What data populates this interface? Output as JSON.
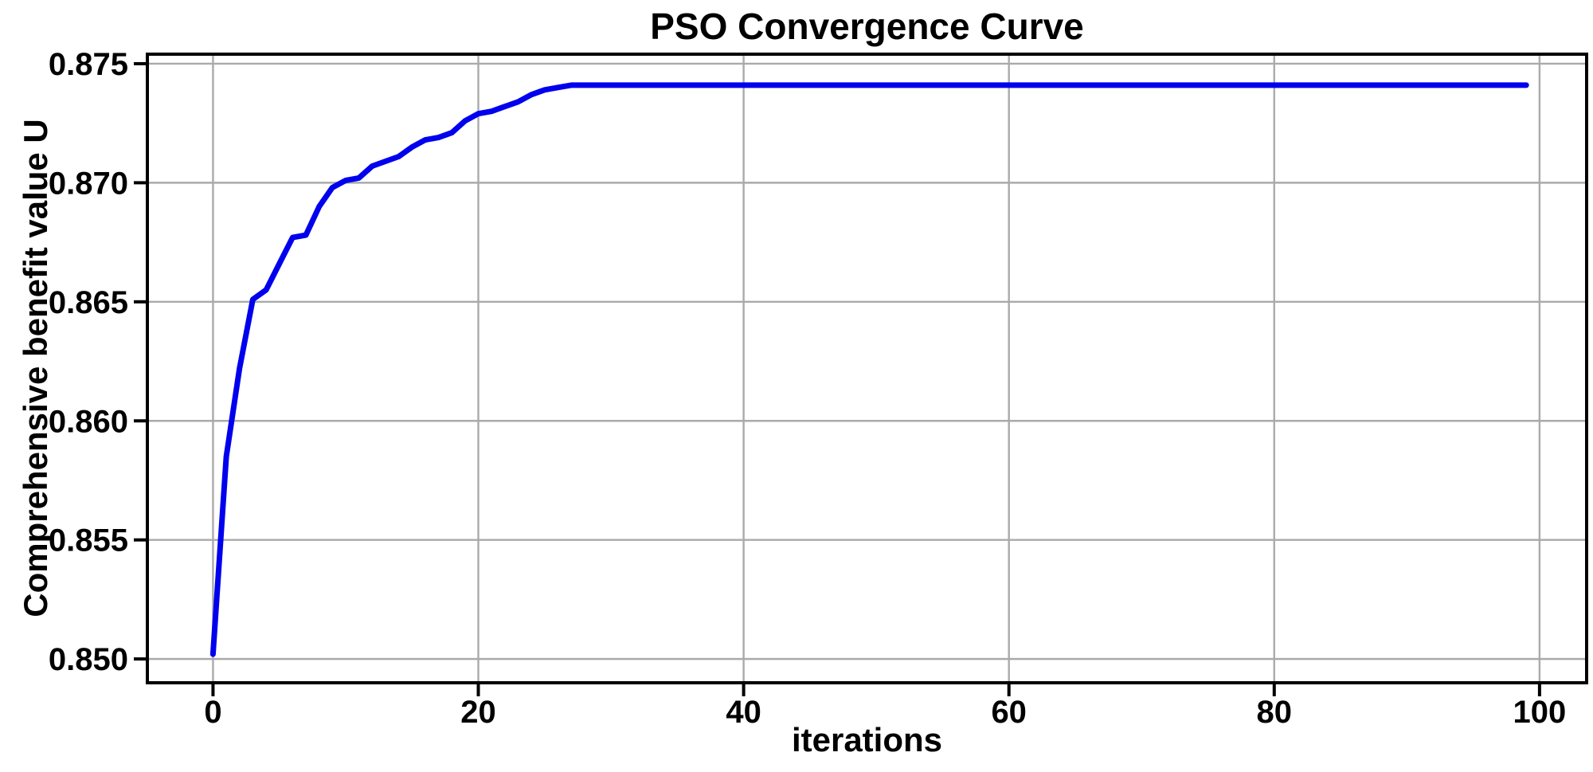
{
  "chart_data": {
    "type": "line",
    "title": "PSO Convergence Curve",
    "xlabel": "iterations",
    "ylabel": "Comprehensive benefit value U",
    "x_ticks": [
      0,
      20,
      40,
      60,
      80,
      100
    ],
    "y_ticks": [
      0.85,
      0.855,
      0.86,
      0.865,
      0.87,
      0.875
    ],
    "y_tick_labels": [
      "0.850",
      "0.855",
      "0.860",
      "0.865",
      "0.870",
      "0.875"
    ],
    "xlim": [
      -4.95,
      103.55
    ],
    "ylim": [
      0.849,
      0.8754
    ],
    "grid": true,
    "legend": "none",
    "colors": {
      "line": "#0000ee",
      "grid": "#aaaaaa",
      "axis": "#000000",
      "background": "#ffffff"
    },
    "series": [
      {
        "name": "comprehensive-benefit-U",
        "x_start": 0,
        "x_step": 1,
        "values": [
          0.8502,
          0.8585,
          0.8622,
          0.8651,
          0.8655,
          0.8666,
          0.8677,
          0.8678,
          0.869,
          0.8698,
          0.8701,
          0.8702,
          0.8707,
          0.8709,
          0.8711,
          0.8715,
          0.8718,
          0.8719,
          0.8721,
          0.8726,
          0.8729,
          0.873,
          0.8732,
          0.8734,
          0.8737,
          0.8739,
          0.874,
          0.8741,
          0.8741,
          0.8741,
          0.8741,
          0.8741,
          0.8741,
          0.8741,
          0.8741,
          0.8741,
          0.8741,
          0.8741,
          0.8741,
          0.8741,
          0.8741,
          0.8741,
          0.8741,
          0.8741,
          0.8741,
          0.8741,
          0.8741,
          0.8741,
          0.8741,
          0.8741,
          0.8741,
          0.8741,
          0.8741,
          0.8741,
          0.8741,
          0.8741,
          0.8741,
          0.8741,
          0.8741,
          0.8741,
          0.8741,
          0.8741,
          0.8741,
          0.8741,
          0.8741,
          0.8741,
          0.8741,
          0.8741,
          0.8741,
          0.8741,
          0.8741,
          0.8741,
          0.8741,
          0.8741,
          0.8741,
          0.8741,
          0.8741,
          0.8741,
          0.8741,
          0.8741,
          0.8741,
          0.8741,
          0.8741,
          0.8741,
          0.8741,
          0.8741,
          0.8741,
          0.8741,
          0.8741,
          0.8741,
          0.8741,
          0.8741,
          0.8741,
          0.8741,
          0.8741,
          0.8741,
          0.8741,
          0.8741,
          0.8741,
          0.8741
        ]
      }
    ]
  }
}
